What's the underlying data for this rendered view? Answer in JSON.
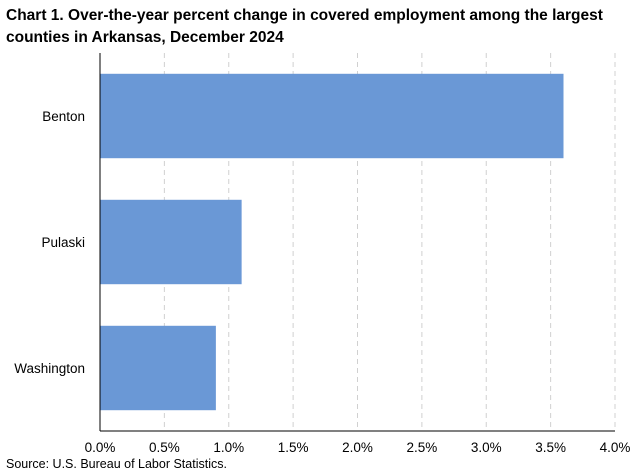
{
  "title_lines": [
    "Chart 1. Over-the-year percent change in covered employment among the largest",
    "counties in Arkansas, December 2024"
  ],
  "source": "Source: U.S. Bureau of Labor Statistics.",
  "colors": {
    "bar": "#6a98d6",
    "grid": "#d0d0d0",
    "axis": "#000000"
  },
  "chart_data": {
    "type": "bar",
    "orientation": "horizontal",
    "categories": [
      "Benton",
      "Pulaski",
      "Washington"
    ],
    "values": [
      3.6,
      1.1,
      0.9
    ],
    "x_ticks": [
      "0.0%",
      "0.5%",
      "1.0%",
      "1.5%",
      "2.0%",
      "2.5%",
      "3.0%",
      "3.5%",
      "4.0%"
    ],
    "xlim": [
      0,
      4
    ],
    "grid": "vertical dashed",
    "legend": "none"
  }
}
